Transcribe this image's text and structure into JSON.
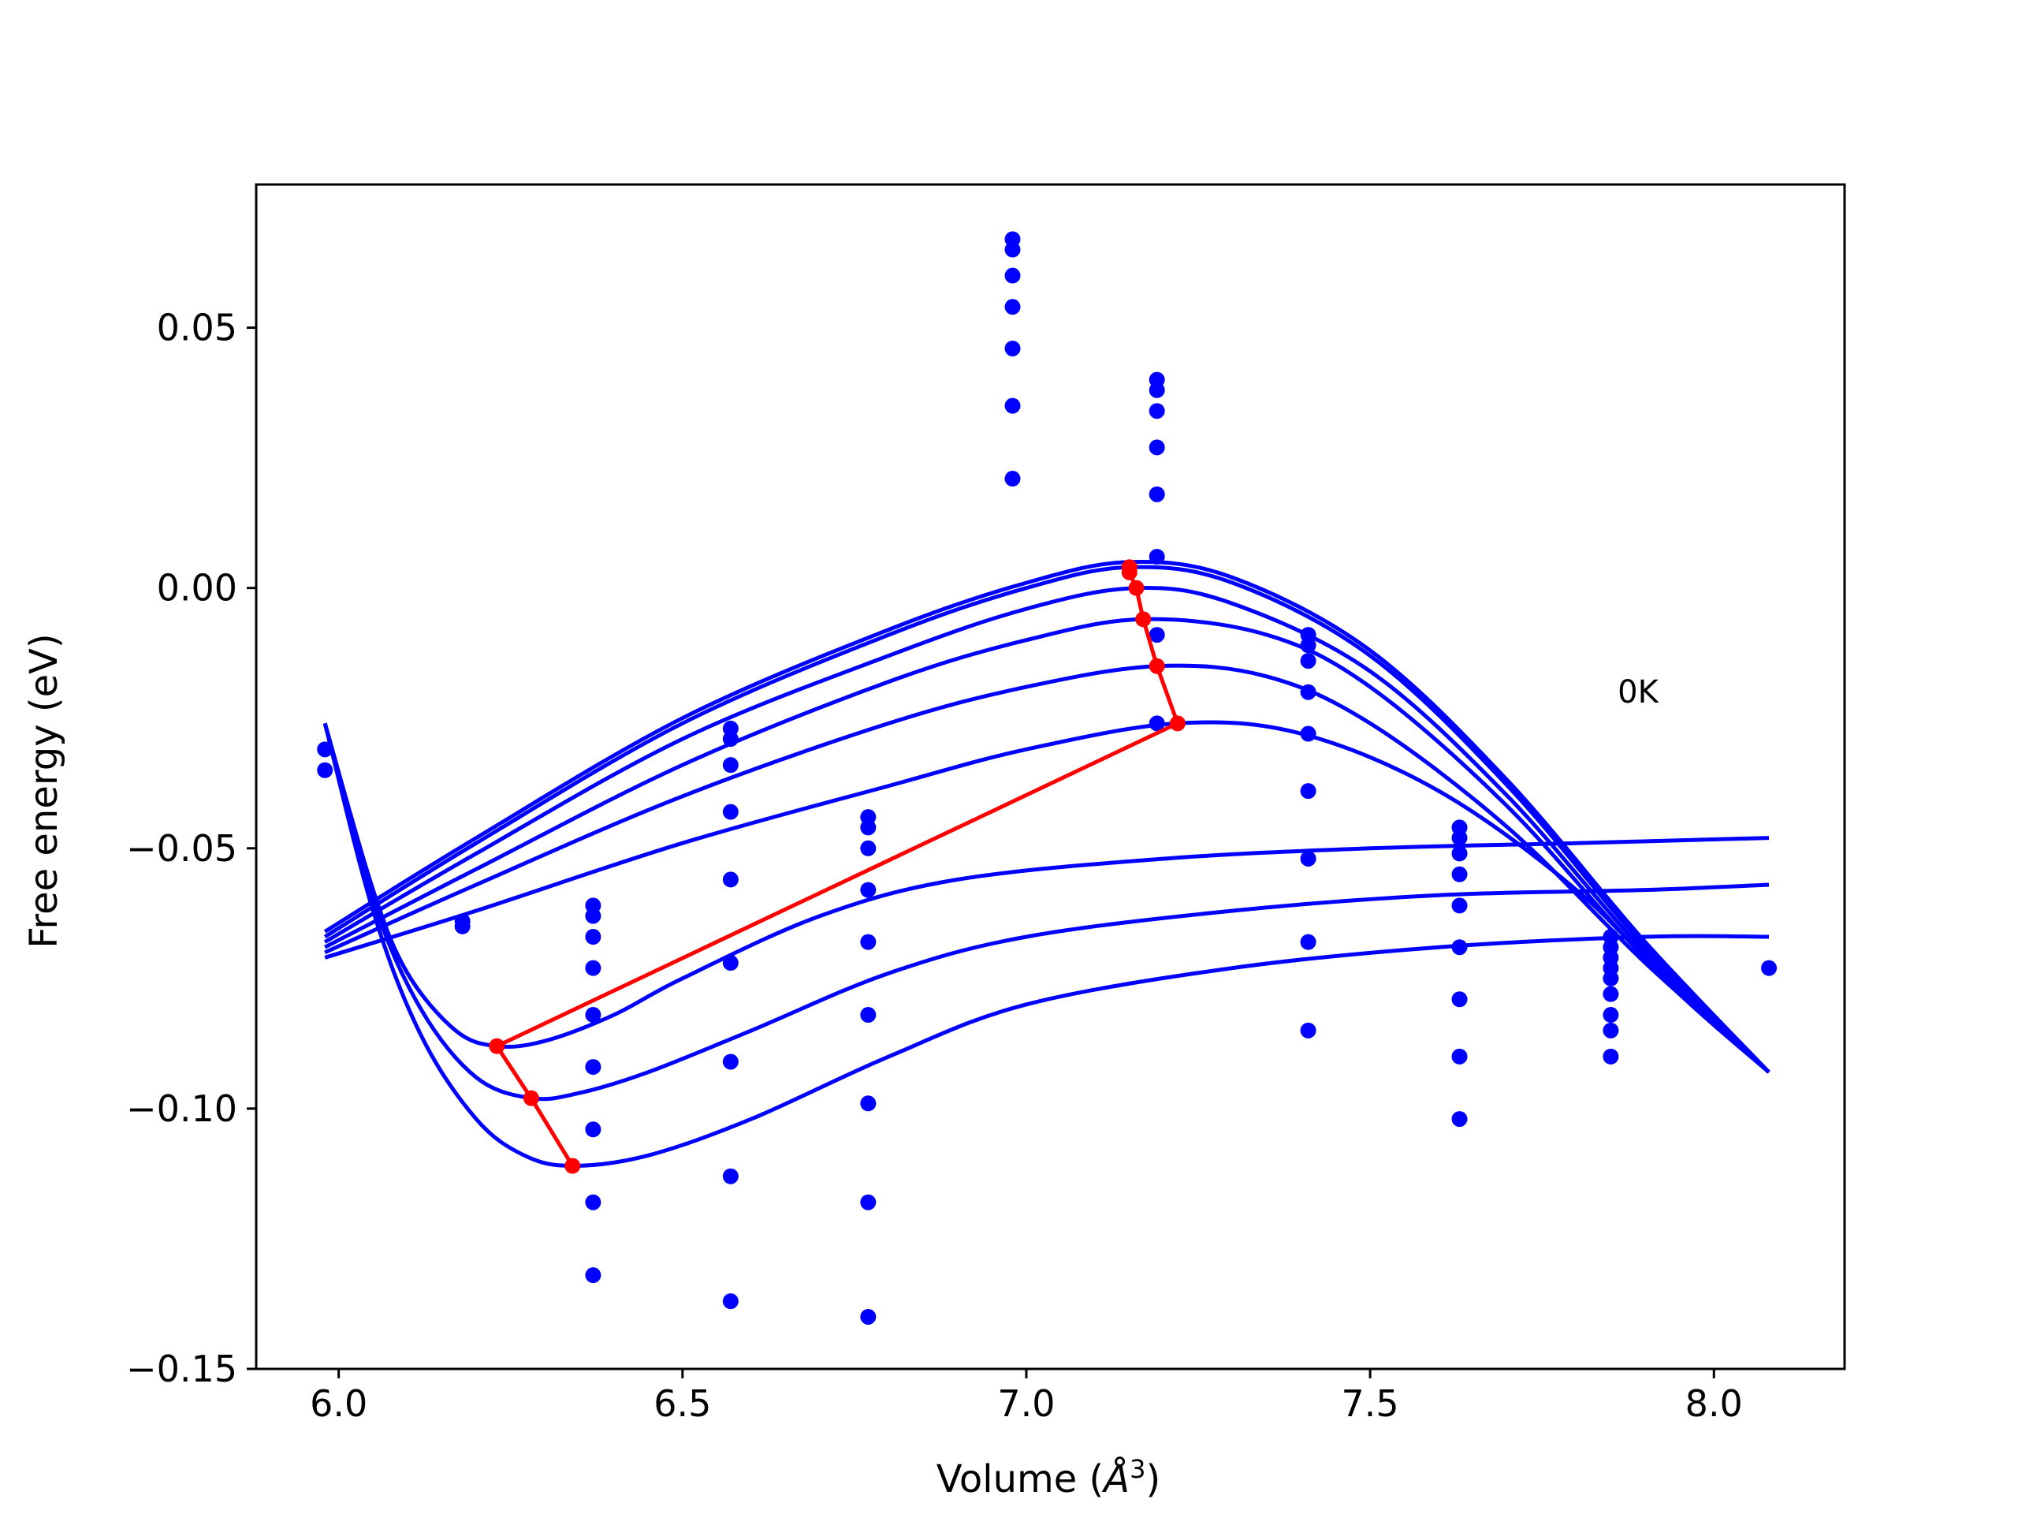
{
  "chart_data": {
    "type": "scatter",
    "title": "",
    "xlabel_prefix": "Volume (",
    "xlabel_symbol": "Å",
    "xlabel_exp": "3",
    "xlabel_suffix": ")",
    "ylabel": "Free energy (eV)",
    "xlim": [
      5.88,
      8.19
    ],
    "ylim": [
      -0.15,
      0.0775
    ],
    "xticks": [
      6.0,
      6.5,
      7.0,
      7.5,
      8.0
    ],
    "xtick_labels": [
      "6.0",
      "6.5",
      "7.0",
      "7.5",
      "8.0"
    ],
    "yticks": [
      -0.15,
      -0.1,
      -0.05,
      0.0,
      0.05
    ],
    "ytick_labels": [
      "−0.15",
      "−0.10",
      "−0.05",
      "0.00",
      "0.05"
    ],
    "grid": false,
    "annotations": [
      {
        "text": "0K",
        "x": 7.86,
        "y": -0.022
      }
    ],
    "series_color": "#0000ff",
    "path_color": "#ff0000",
    "points": [
      {
        "x": 5.98,
        "y": -0.035
      },
      {
        "x": 5.98,
        "y": -0.031
      },
      {
        "x": 6.18,
        "y": -0.064
      },
      {
        "x": 6.18,
        "y": -0.065
      },
      {
        "x": 6.37,
        "y": -0.061
      },
      {
        "x": 6.37,
        "y": -0.063
      },
      {
        "x": 6.37,
        "y": -0.067
      },
      {
        "x": 6.37,
        "y": -0.073
      },
      {
        "x": 6.37,
        "y": -0.082
      },
      {
        "x": 6.37,
        "y": -0.092
      },
      {
        "x": 6.37,
        "y": -0.104
      },
      {
        "x": 6.37,
        "y": -0.118
      },
      {
        "x": 6.37,
        "y": -0.132
      },
      {
        "x": 6.57,
        "y": -0.027
      },
      {
        "x": 6.57,
        "y": -0.029
      },
      {
        "x": 6.57,
        "y": -0.034
      },
      {
        "x": 6.57,
        "y": -0.043
      },
      {
        "x": 6.57,
        "y": -0.056
      },
      {
        "x": 6.57,
        "y": -0.072
      },
      {
        "x": 6.57,
        "y": -0.091
      },
      {
        "x": 6.57,
        "y": -0.113
      },
      {
        "x": 6.57,
        "y": -0.137
      },
      {
        "x": 6.77,
        "y": -0.044
      },
      {
        "x": 6.77,
        "y": -0.046
      },
      {
        "x": 6.77,
        "y": -0.05
      },
      {
        "x": 6.77,
        "y": -0.058
      },
      {
        "x": 6.77,
        "y": -0.068
      },
      {
        "x": 6.77,
        "y": -0.082
      },
      {
        "x": 6.77,
        "y": -0.099
      },
      {
        "x": 6.77,
        "y": -0.118
      },
      {
        "x": 6.77,
        "y": -0.14
      },
      {
        "x": 6.98,
        "y": 0.067
      },
      {
        "x": 6.98,
        "y": 0.065
      },
      {
        "x": 6.98,
        "y": 0.06
      },
      {
        "x": 6.98,
        "y": 0.054
      },
      {
        "x": 6.98,
        "y": 0.046
      },
      {
        "x": 6.98,
        "y": 0.035
      },
      {
        "x": 6.98,
        "y": 0.021
      },
      {
        "x": 7.19,
        "y": 0.04
      },
      {
        "x": 7.19,
        "y": 0.038
      },
      {
        "x": 7.19,
        "y": 0.034
      },
      {
        "x": 7.19,
        "y": 0.027
      },
      {
        "x": 7.19,
        "y": 0.018
      },
      {
        "x": 7.19,
        "y": 0.006
      },
      {
        "x": 7.19,
        "y": -0.009
      },
      {
        "x": 7.19,
        "y": -0.026
      },
      {
        "x": 7.41,
        "y": -0.009
      },
      {
        "x": 7.41,
        "y": -0.011
      },
      {
        "x": 7.41,
        "y": -0.014
      },
      {
        "x": 7.41,
        "y": -0.02
      },
      {
        "x": 7.41,
        "y": -0.028
      },
      {
        "x": 7.41,
        "y": -0.039
      },
      {
        "x": 7.41,
        "y": -0.052
      },
      {
        "x": 7.41,
        "y": -0.068
      },
      {
        "x": 7.41,
        "y": -0.085
      },
      {
        "x": 7.63,
        "y": -0.046
      },
      {
        "x": 7.63,
        "y": -0.048
      },
      {
        "x": 7.63,
        "y": -0.051
      },
      {
        "x": 7.63,
        "y": -0.055
      },
      {
        "x": 7.63,
        "y": -0.061
      },
      {
        "x": 7.63,
        "y": -0.069
      },
      {
        "x": 7.63,
        "y": -0.079
      },
      {
        "x": 7.63,
        "y": -0.09
      },
      {
        "x": 7.63,
        "y": -0.102
      },
      {
        "x": 7.85,
        "y": -0.067
      },
      {
        "x": 7.85,
        "y": -0.069
      },
      {
        "x": 7.85,
        "y": -0.071
      },
      {
        "x": 7.85,
        "y": -0.073
      },
      {
        "x": 7.85,
        "y": -0.075
      },
      {
        "x": 7.85,
        "y": -0.078
      },
      {
        "x": 7.85,
        "y": -0.082
      },
      {
        "x": 7.85,
        "y": -0.085
      },
      {
        "x": 7.85,
        "y": -0.09
      },
      {
        "x": 8.08,
        "y": -0.073
      }
    ],
    "curves": [
      {
        "x": [
          5.98,
          6.2,
          6.5,
          6.8,
          7.0,
          7.15,
          7.3,
          7.5,
          7.7,
          7.9,
          8.08
        ],
        "y": [
          -0.066,
          -0.048,
          -0.025,
          -0.008,
          0.001,
          0.005,
          0.002,
          -0.012,
          -0.037,
          -0.068,
          -0.093
        ]
      },
      {
        "x": [
          5.98,
          6.2,
          6.5,
          6.8,
          7.0,
          7.15,
          7.3,
          7.5,
          7.7,
          7.9,
          8.08
        ],
        "y": [
          -0.067,
          -0.049,
          -0.026,
          -0.009,
          0.0,
          0.004,
          0.001,
          -0.013,
          -0.038,
          -0.069,
          -0.093
        ]
      },
      {
        "x": [
          5.98,
          6.2,
          6.5,
          6.8,
          7.0,
          7.16,
          7.3,
          7.5,
          7.7,
          7.9,
          8.08
        ],
        "y": [
          -0.068,
          -0.051,
          -0.029,
          -0.013,
          -0.004,
          0.0,
          -0.003,
          -0.016,
          -0.04,
          -0.07,
          -0.093
        ]
      },
      {
        "x": [
          5.98,
          6.2,
          6.5,
          6.8,
          7.0,
          7.17,
          7.35,
          7.5,
          7.7,
          7.9,
          8.08
        ],
        "y": [
          -0.069,
          -0.054,
          -0.034,
          -0.018,
          -0.01,
          -0.006,
          -0.009,
          -0.019,
          -0.042,
          -0.071,
          -0.093
        ]
      },
      {
        "x": [
          5.98,
          6.2,
          6.5,
          6.8,
          7.0,
          7.19,
          7.35,
          7.5,
          7.7,
          7.9,
          8.08
        ],
        "y": [
          -0.07,
          -0.057,
          -0.04,
          -0.026,
          -0.019,
          -0.015,
          -0.017,
          -0.026,
          -0.046,
          -0.072,
          -0.093
        ]
      },
      {
        "x": [
          5.98,
          6.2,
          6.5,
          6.8,
          7.0,
          7.22,
          7.4,
          7.6,
          7.8,
          7.95,
          8.08
        ],
        "y": [
          -0.071,
          -0.062,
          -0.049,
          -0.038,
          -0.031,
          -0.026,
          -0.028,
          -0.039,
          -0.058,
          -0.078,
          -0.093
        ]
      },
      {
        "x": [
          5.98,
          6.05,
          6.1,
          6.17,
          6.23,
          6.3,
          6.4,
          6.5,
          6.7,
          6.9,
          7.2,
          7.5,
          7.8,
          8.08
        ],
        "y": [
          -0.026,
          -0.058,
          -0.074,
          -0.085,
          -0.088,
          -0.087,
          -0.082,
          -0.075,
          -0.063,
          -0.056,
          -0.052,
          -0.05,
          -0.049,
          -0.048
        ]
      },
      {
        "x": [
          5.98,
          6.05,
          6.12,
          6.2,
          6.28,
          6.35,
          6.45,
          6.6,
          6.8,
          7.0,
          7.3,
          7.6,
          7.9,
          8.08
        ],
        "y": [
          -0.026,
          -0.06,
          -0.081,
          -0.094,
          -0.098,
          -0.097,
          -0.093,
          -0.085,
          -0.074,
          -0.067,
          -0.062,
          -0.059,
          -0.058,
          -0.057
        ]
      },
      {
        "x": [
          5.98,
          6.05,
          6.12,
          6.2,
          6.27,
          6.34,
          6.45,
          6.6,
          6.8,
          7.0,
          7.3,
          7.6,
          7.9,
          8.08
        ],
        "y": [
          -0.026,
          -0.062,
          -0.086,
          -0.102,
          -0.109,
          -0.111,
          -0.109,
          -0.102,
          -0.09,
          -0.08,
          -0.073,
          -0.069,
          -0.067,
          -0.067
        ]
      }
    ],
    "minima_path": {
      "x": [
        7.15,
        7.15,
        7.16,
        7.17,
        7.19,
        7.22,
        6.23,
        6.28,
        6.34
      ],
      "y": [
        0.004,
        0.003,
        0.0,
        -0.006,
        -0.015,
        -0.026,
        -0.088,
        -0.098,
        -0.111
      ]
    }
  }
}
